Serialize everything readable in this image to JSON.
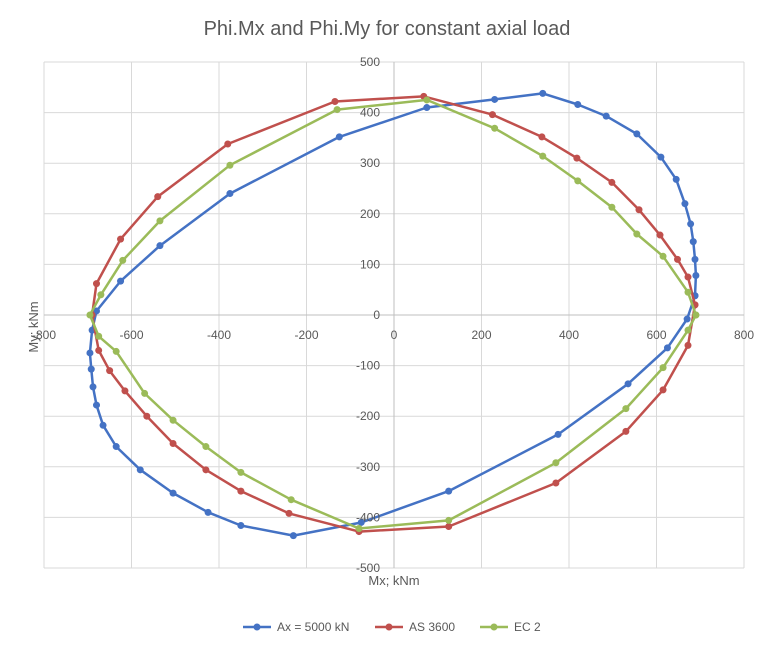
{
  "chart_data": {
    "type": "scatter",
    "title": "Phi.Mx and Phi.My for constant axial load",
    "xlabel": "Mx; kNm",
    "ylabel": "My; kNm",
    "xlim": [
      -800,
      800
    ],
    "ylim": [
      -500,
      500
    ],
    "x_ticks": [
      -800,
      -600,
      -400,
      -200,
      0,
      200,
      400,
      600,
      800
    ],
    "y_ticks": [
      -500,
      -400,
      -300,
      -200,
      -100,
      0,
      100,
      200,
      300,
      400,
      500
    ],
    "x_tick_labels": [
      "-800",
      "-600",
      "-400",
      "-200",
      "0",
      "200",
      "400",
      "600",
      "800"
    ],
    "y_tick_labels": [
      "-500",
      "-400",
      "-300",
      "-200",
      "-100",
      "0",
      "100",
      "200",
      "300",
      "400",
      "500"
    ],
    "grid": true,
    "legend_position": "bottom",
    "series": [
      {
        "name": "Ax = 5000 kN",
        "color": "#4472C4",
        "points": [
          [
            688,
            38
          ],
          [
            690,
            78
          ],
          [
            688,
            110
          ],
          [
            684,
            145
          ],
          [
            678,
            180
          ],
          [
            665,
            220
          ],
          [
            645,
            268
          ],
          [
            610,
            312
          ],
          [
            555,
            358
          ],
          [
            485,
            393
          ],
          [
            420,
            416
          ],
          [
            340,
            438
          ],
          [
            230,
            426
          ],
          [
            75,
            410
          ],
          [
            -125,
            352
          ],
          [
            -375,
            240
          ],
          [
            -535,
            137
          ],
          [
            -625,
            67
          ],
          [
            -680,
            8
          ],
          [
            -690,
            -30
          ],
          [
            -695,
            -75
          ],
          [
            -692,
            -107
          ],
          [
            -688,
            -142
          ],
          [
            -680,
            -178
          ],
          [
            -665,
            -218
          ],
          [
            -635,
            -260
          ],
          [
            -580,
            -306
          ],
          [
            -505,
            -352
          ],
          [
            -425,
            -390
          ],
          [
            -350,
            -416
          ],
          [
            -230,
            -436
          ],
          [
            -75,
            -410
          ],
          [
            125,
            -348
          ],
          [
            375,
            -236
          ],
          [
            535,
            -136
          ],
          [
            625,
            -65
          ],
          [
            670,
            -8
          ],
          [
            688,
            38
          ]
        ]
      },
      {
        "name": "AS 3600",
        "color": "#C0504D",
        "points": [
          [
            688,
            20
          ],
          [
            672,
            75
          ],
          [
            648,
            110
          ],
          [
            608,
            158
          ],
          [
            560,
            208
          ],
          [
            498,
            262
          ],
          [
            418,
            310
          ],
          [
            338,
            352
          ],
          [
            225,
            396
          ],
          [
            68,
            432
          ],
          [
            -135,
            422
          ],
          [
            -380,
            338
          ],
          [
            -540,
            234
          ],
          [
            -625,
            150
          ],
          [
            -680,
            62
          ],
          [
            -690,
            0
          ],
          [
            -675,
            -70
          ],
          [
            -650,
            -110
          ],
          [
            -615,
            -150
          ],
          [
            -565,
            -200
          ],
          [
            -505,
            -254
          ],
          [
            -430,
            -306
          ],
          [
            -350,
            -348
          ],
          [
            -240,
            -392
          ],
          [
            -80,
            -428
          ],
          [
            125,
            -418
          ],
          [
            370,
            -332
          ],
          [
            530,
            -230
          ],
          [
            615,
            -148
          ],
          [
            672,
            -60
          ],
          [
            688,
            20
          ]
        ]
      },
      {
        "name": "EC 2",
        "color": "#9BBB59",
        "points": [
          [
            690,
            0
          ],
          [
            672,
            45
          ],
          [
            615,
            116
          ],
          [
            555,
            160
          ],
          [
            498,
            213
          ],
          [
            420,
            265
          ],
          [
            340,
            314
          ],
          [
            230,
            369
          ],
          [
            75,
            425
          ],
          [
            -130,
            406
          ],
          [
            -375,
            296
          ],
          [
            -535,
            186
          ],
          [
            -620,
            108
          ],
          [
            -670,
            40
          ],
          [
            -695,
            0
          ],
          [
            -675,
            -42
          ],
          [
            -635,
            -72
          ],
          [
            -570,
            -155
          ],
          [
            -505,
            -208
          ],
          [
            -430,
            -260
          ],
          [
            -350,
            -311
          ],
          [
            -235,
            -365
          ],
          [
            -80,
            -422
          ],
          [
            125,
            -406
          ],
          [
            370,
            -292
          ],
          [
            530,
            -185
          ],
          [
            615,
            -104
          ],
          [
            672,
            -30
          ],
          [
            690,
            0
          ]
        ]
      }
    ]
  }
}
